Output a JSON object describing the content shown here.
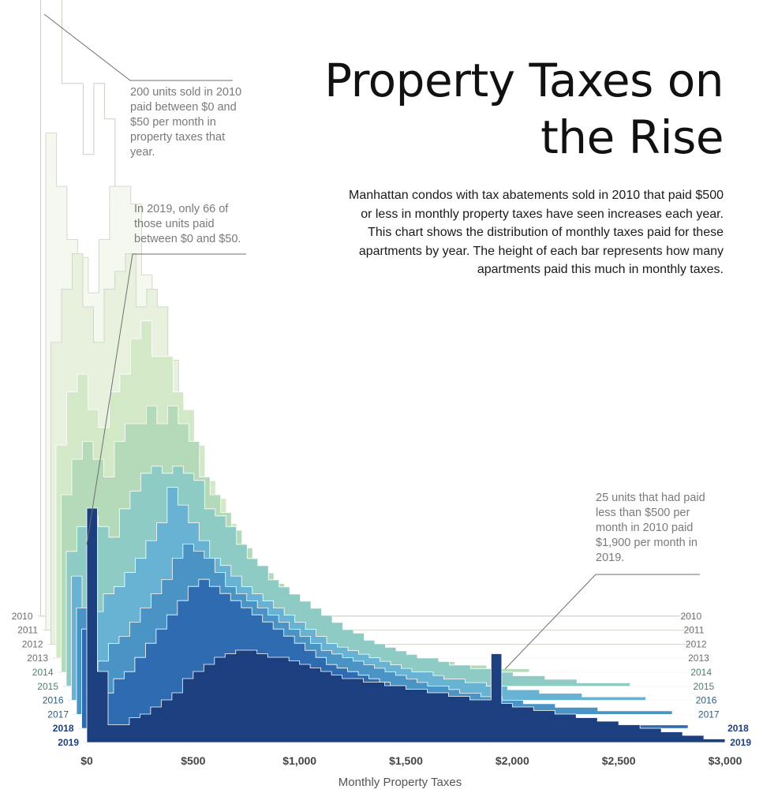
{
  "title": "Property Taxes on the Rise",
  "description": "Manhattan condos with tax abatements sold in 2010 that paid $500 or less in monthly property taxes have seen increases each year. This chart shows the distribution of monthly taxes paid for these apartments by year. The height of each bar represents how many apartments paid this much in monthly taxes.",
  "annotations": [
    "200 units sold in 2010 paid between $0 and $50 per month in property taxes that year.",
    "In 2019, only 66 of those units paid between $0 and $50.",
    "25 units that had paid less than $500 per month in 2010 paid $1,900 per month in 2019."
  ],
  "chart_data": {
    "type": "area",
    "title": "Property Taxes on the Rise",
    "xlabel": "Monthly Property Taxes",
    "x_ticks": [
      "$0",
      "$500",
      "$1,000",
      "$1,500",
      "$2,000",
      "$2,500",
      "$3,000"
    ],
    "xlim": [
      0,
      3000
    ],
    "bin_width": 50,
    "years": [
      "2010",
      "2011",
      "2012",
      "2013",
      "2014",
      "2015",
      "2016",
      "2017",
      "2018",
      "2019"
    ],
    "colors": [
      "#ffffff",
      "#f4f8ee",
      "#e7f1de",
      "#d2e8c6",
      "#b4dab9",
      "#8ecbc4",
      "#68b3d4",
      "#4a93c5",
      "#2f6bb0",
      "#1c3f7f"
    ],
    "series": [
      {
        "name": "2010",
        "values": [
          200,
          185,
          150,
          150,
          130,
          150,
          140,
          110,
          105,
          80,
          60,
          40,
          25,
          15,
          8,
          5,
          3,
          2,
          1,
          0,
          0,
          0,
          0,
          0,
          0,
          0,
          0,
          0,
          0,
          0,
          0,
          0,
          0,
          0,
          0,
          0,
          0,
          0,
          0,
          0,
          0,
          0,
          0,
          0,
          0,
          0,
          0,
          0,
          0,
          0,
          0,
          0,
          0,
          0,
          0,
          0,
          0,
          0,
          0,
          0
        ]
      },
      {
        "name": "2011",
        "values": [
          140,
          125,
          110,
          105,
          95,
          110,
          125,
          125,
          120,
          100,
          85,
          60,
          40,
          25,
          15,
          8,
          5,
          3,
          2,
          1,
          0,
          0,
          0,
          0,
          0,
          0,
          0,
          0,
          0,
          0,
          0,
          0,
          0,
          0,
          0,
          0,
          0,
          0,
          0,
          0,
          0,
          0,
          0,
          0,
          0,
          0,
          0,
          0,
          0,
          0,
          0,
          0,
          0,
          0,
          0,
          0,
          0,
          0,
          0,
          0
        ]
      },
      {
        "name": "2012",
        "values": [
          85,
          100,
          110,
          95,
          85,
          100,
          105,
          110,
          95,
          100,
          95,
          80,
          65,
          45,
          30,
          20,
          12,
          8,
          5,
          3,
          1,
          0,
          0,
          0,
          0,
          0,
          0,
          0,
          0,
          0,
          0,
          0,
          0,
          0,
          0,
          0,
          0,
          0,
          0,
          0,
          0,
          0,
          0,
          0,
          0,
          0,
          0,
          0,
          0,
          0,
          0,
          0,
          0,
          0,
          0,
          0,
          0,
          0,
          0,
          0
        ]
      },
      {
        "name": "2013",
        "values": [
          60,
          75,
          80,
          70,
          65,
          75,
          80,
          90,
          95,
          85,
          85,
          75,
          70,
          60,
          50,
          45,
          38,
          30,
          25,
          20,
          15,
          12,
          10,
          8,
          6,
          4,
          3,
          2,
          2,
          1,
          1,
          0,
          0,
          0,
          0,
          0,
          0,
          0,
          0,
          0,
          0,
          0,
          0,
          0,
          0,
          0,
          0,
          0,
          0,
          0,
          0,
          0,
          0,
          0,
          0,
          0,
          0,
          0,
          0,
          0
        ]
      },
      {
        "name": "2014",
        "values": [
          50,
          60,
          65,
          60,
          55,
          65,
          70,
          70,
          75,
          70,
          75,
          70,
          65,
          55,
          50,
          45,
          40,
          35,
          30,
          28,
          25,
          22,
          20,
          18,
          15,
          12,
          10,
          9,
          8,
          7,
          6,
          5,
          5,
          4,
          4,
          3,
          3,
          2,
          2,
          2,
          1,
          1,
          1,
          1,
          0,
          0,
          0,
          0,
          0,
          0,
          0,
          0,
          0,
          0,
          0,
          0,
          0,
          0,
          0,
          0
        ]
      },
      {
        "name": "2015",
        "values": [
          38,
          45,
          48,
          45,
          42,
          50,
          55,
          60,
          62,
          60,
          62,
          60,
          58,
          50,
          48,
          45,
          40,
          36,
          34,
          30,
          28,
          26,
          24,
          22,
          20,
          18,
          16,
          15,
          13,
          12,
          11,
          10,
          9,
          8,
          8,
          7,
          6,
          6,
          5,
          5,
          4,
          4,
          3,
          3,
          3,
          2,
          2,
          2,
          1,
          1,
          1,
          1,
          1,
          0,
          0,
          0,
          0,
          0,
          0,
          0
        ]
      },
      {
        "name": "2016",
        "values": [
          35,
          15,
          25,
          30,
          32,
          36,
          40,
          45,
          50,
          60,
          55,
          50,
          45,
          40,
          38,
          35,
          32,
          30,
          28,
          26,
          24,
          22,
          20,
          18,
          16,
          15,
          14,
          13,
          12,
          11,
          10,
          9,
          8,
          8,
          7,
          6,
          6,
          5,
          5,
          4,
          4,
          3,
          3,
          3,
          2,
          2,
          2,
          2,
          1,
          1,
          1,
          1,
          1,
          1,
          0,
          0,
          0,
          0,
          0,
          0
        ]
      },
      {
        "name": "2017",
        "values": [
          30,
          10,
          15,
          20,
          22,
          26,
          30,
          34,
          38,
          44,
          48,
          46,
          44,
          40,
          36,
          34,
          32,
          30,
          28,
          26,
          24,
          22,
          20,
          18,
          17,
          16,
          15,
          14,
          13,
          12,
          11,
          10,
          9,
          8,
          8,
          7,
          6,
          6,
          5,
          5,
          4,
          4,
          3,
          3,
          3,
          2,
          2,
          2,
          2,
          1,
          1,
          1,
          1,
          1,
          1,
          1,
          0,
          0,
          0,
          0
        ]
      },
      {
        "name": "2018",
        "values": [
          28,
          8,
          10,
          14,
          16,
          20,
          24,
          28,
          32,
          36,
          40,
          42,
          40,
          38,
          36,
          34,
          32,
          30,
          28,
          26,
          24,
          22,
          20,
          18,
          17,
          16,
          15,
          14,
          13,
          12,
          11,
          10,
          9,
          8,
          8,
          7,
          6,
          6,
          5,
          5,
          4,
          4,
          3,
          3,
          3,
          2,
          2,
          2,
          2,
          1,
          1,
          1,
          1,
          1,
          1,
          1,
          1,
          0,
          0,
          0
        ]
      },
      {
        "name": "2019",
        "values": [
          66,
          20,
          5,
          5,
          7,
          8,
          10,
          12,
          14,
          18,
          20,
          22,
          24,
          25,
          26,
          26,
          25,
          24,
          24,
          23,
          22,
          21,
          20,
          19,
          18,
          18,
          17,
          17,
          16,
          16,
          15,
          15,
          14,
          14,
          13,
          13,
          12,
          12,
          25,
          11,
          10,
          10,
          9,
          9,
          8,
          8,
          7,
          7,
          6,
          6,
          5,
          5,
          4,
          4,
          3,
          3,
          2,
          2,
          1,
          1
        ]
      }
    ]
  }
}
